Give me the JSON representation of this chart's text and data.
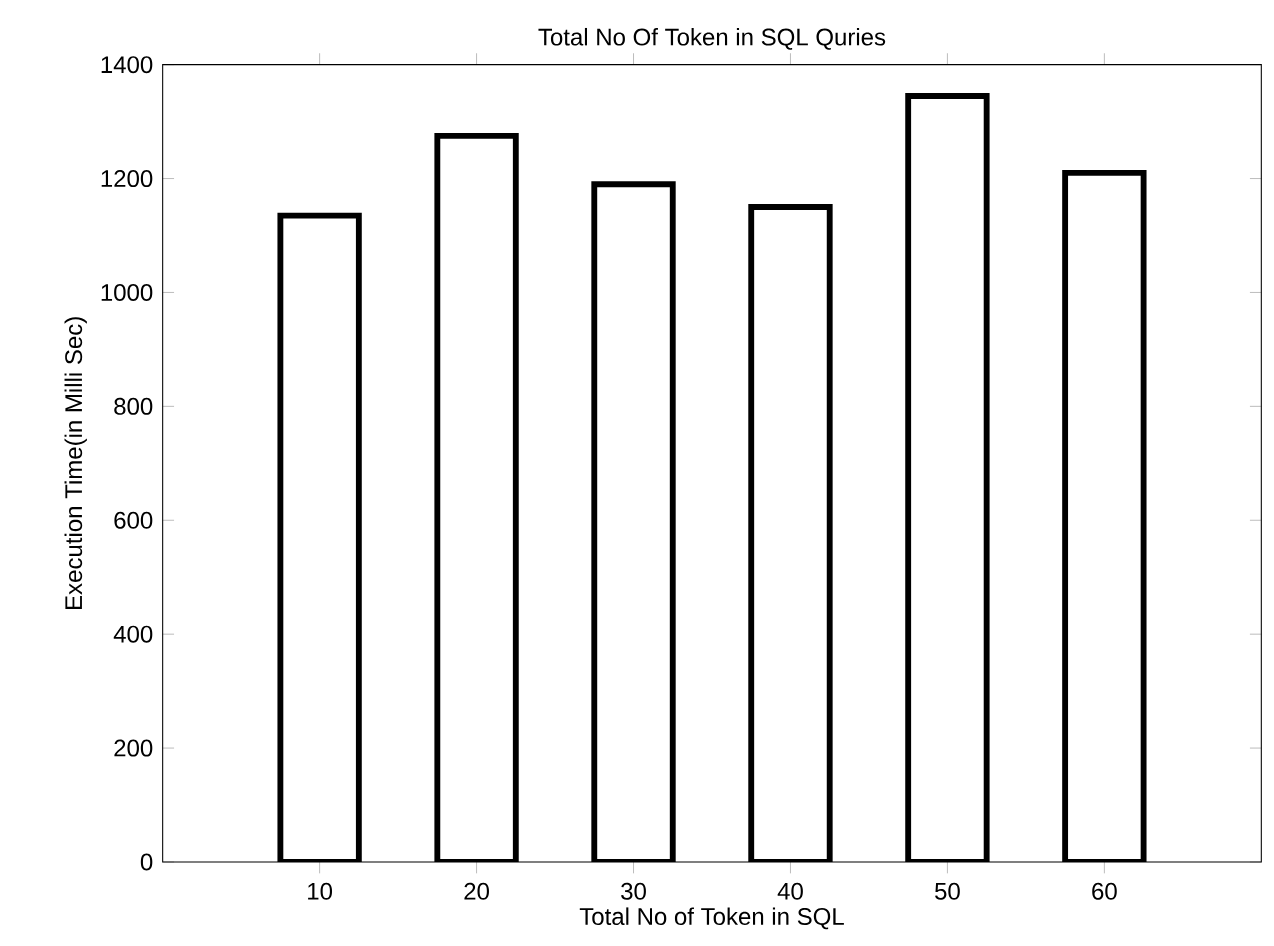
{
  "chart_data": {
    "type": "bar",
    "title": "Total No Of Token in SQL Quries",
    "xlabel": "Total No of Token in SQL",
    "ylabel": "Execution Time(in Milli Sec)",
    "x": [
      10,
      20,
      30,
      40,
      50,
      60
    ],
    "values": [
      1135,
      1275,
      1190,
      1150,
      1345,
      1210
    ],
    "color": "#ffffff",
    "xlim": [
      0,
      70
    ],
    "xticks": [
      10,
      20,
      30,
      40,
      50,
      60
    ],
    "ylim": [
      0,
      1400
    ],
    "yticks": [
      0,
      200,
      400,
      600,
      800,
      1000,
      1200,
      1400
    ]
  }
}
